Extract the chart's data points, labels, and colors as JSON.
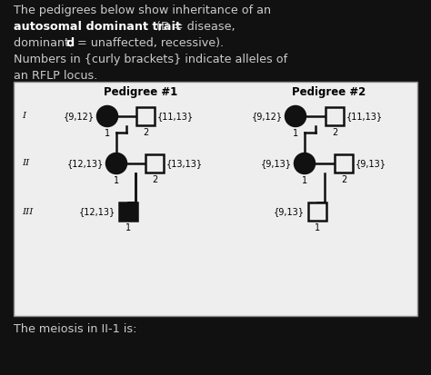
{
  "bg_color": "#111111",
  "text_color": "#cccccc",
  "bold_color": "#ffffff",
  "pedigree_bg": "#eeeeee",
  "pedigree_border": "#888888",
  "node_fg": "#111111",
  "node_bg": "#eeeeee",
  "ped1_title": "Pedigree #1",
  "ped2_title": "Pedigree #2",
  "bottom_text": "The meiosis in II-1 is:",
  "line1": "The pedigrees below show inheritance of an",
  "line2a": "autosomal dominant trait",
  "line2b": " (D = disease,",
  "line3a": "dominant; ",
  "line3b": "d",
  "line3c": " = unaffected, recessive).",
  "line4": "Numbers in {curly brackets} indicate alleles of",
  "line5": "an RFLP locus.",
  "ped1_I_f": {
    "filled": true,
    "label": "{9,12}",
    "num": "1"
  },
  "ped1_I_m": {
    "filled": false,
    "label": "{11,13}",
    "num": "2"
  },
  "ped1_II_f": {
    "filled": true,
    "label": "{12,13}",
    "num": "1"
  },
  "ped1_II_m": {
    "filled": false,
    "label": "{13,13}",
    "num": "2"
  },
  "ped1_III_m": {
    "filled": true,
    "label": "{12,13}",
    "num": "1"
  },
  "ped2_I_f": {
    "filled": true,
    "label": "{9,12}",
    "num": "1"
  },
  "ped2_I_m": {
    "filled": false,
    "label": "{11,13}",
    "num": "2"
  },
  "ped2_II_f": {
    "filled": true,
    "label": "{9,13}",
    "num": "1"
  },
  "ped2_II_m": {
    "filled": false,
    "label": "{9,13}",
    "num": "2"
  },
  "ped2_III_m": {
    "filled": false,
    "label": "{9,13}",
    "num": "1"
  }
}
